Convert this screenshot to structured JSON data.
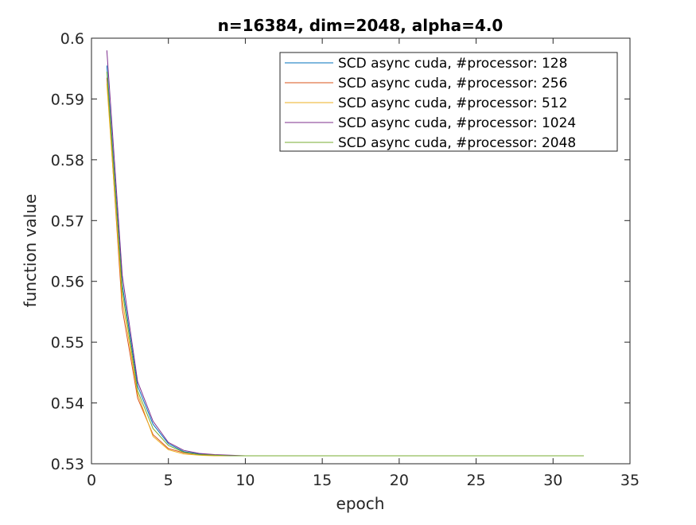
{
  "chart_data": {
    "type": "line",
    "title": "n=16384, dim=2048, alpha=4.0",
    "xlabel": "epoch",
    "ylabel": "function value",
    "xlim": [
      0,
      35
    ],
    "ylim": [
      0.53,
      0.6
    ],
    "xticks": [
      0,
      5,
      10,
      15,
      20,
      25,
      30,
      35
    ],
    "yticks": [
      0.53,
      0.54,
      0.55,
      0.56,
      0.57,
      0.58,
      0.59,
      0.6
    ],
    "xtick_labels": [
      "0",
      "5",
      "10",
      "15",
      "20",
      "25",
      "30",
      "35"
    ],
    "ytick_labels": [
      "0.53",
      "0.54",
      "0.55",
      "0.56",
      "0.57",
      "0.58",
      "0.59",
      "0.6"
    ],
    "grid": false,
    "legend_position": "top-right",
    "series": [
      {
        "name": "SCD  async  cuda, #processor: 128",
        "color": "#0072BD",
        "points": [
          [
            1,
            0.5955
          ],
          [
            2,
            0.5595
          ],
          [
            3,
            0.5428
          ],
          [
            4,
            0.5365
          ],
          [
            5,
            0.5333
          ],
          [
            6,
            0.532
          ],
          [
            7,
            0.5316
          ],
          [
            8,
            0.5314
          ],
          [
            9,
            0.5313
          ],
          [
            10,
            0.5313
          ],
          [
            32,
            0.5313
          ]
        ]
      },
      {
        "name": "SCD  async  cuda, #processor: 256",
        "color": "#D95319",
        "points": [
          [
            1,
            0.5935
          ],
          [
            2,
            0.5555
          ],
          [
            3,
            0.5408
          ],
          [
            4,
            0.5348
          ],
          [
            5,
            0.5325
          ],
          [
            6,
            0.5318
          ],
          [
            7,
            0.5315
          ],
          [
            8,
            0.5314
          ],
          [
            9,
            0.5313
          ],
          [
            10,
            0.5313
          ],
          [
            32,
            0.5313
          ]
        ]
      },
      {
        "name": "SCD  async  cuda, #processor: 512",
        "color": "#EDB120",
        "points": [
          [
            1,
            0.5925
          ],
          [
            2,
            0.557
          ],
          [
            3,
            0.5415
          ],
          [
            4,
            0.5345
          ],
          [
            5,
            0.5323
          ],
          [
            6,
            0.5316
          ],
          [
            7,
            0.5314
          ],
          [
            8,
            0.5313
          ],
          [
            9,
            0.5313
          ],
          [
            10,
            0.5313
          ],
          [
            32,
            0.5313
          ]
        ]
      },
      {
        "name": "SCD  async  cuda, #processor: 1024",
        "color": "#7E2F8E",
        "points": [
          [
            1,
            0.598
          ],
          [
            2,
            0.561
          ],
          [
            3,
            0.5435
          ],
          [
            4,
            0.537
          ],
          [
            5,
            0.5335
          ],
          [
            6,
            0.5322
          ],
          [
            7,
            0.5317
          ],
          [
            8,
            0.5315
          ],
          [
            9,
            0.5314
          ],
          [
            10,
            0.5313
          ],
          [
            32,
            0.5313
          ]
        ]
      },
      {
        "name": "SCD  async  cuda, #processor: 2048",
        "color": "#77AC30",
        "points": [
          [
            1,
            0.5945
          ],
          [
            2,
            0.5585
          ],
          [
            3,
            0.542
          ],
          [
            4,
            0.5358
          ],
          [
            5,
            0.533
          ],
          [
            6,
            0.5319
          ],
          [
            7,
            0.5315
          ],
          [
            8,
            0.5314
          ],
          [
            9,
            0.5313
          ],
          [
            10,
            0.5313
          ],
          [
            32,
            0.5313
          ]
        ]
      }
    ]
  }
}
